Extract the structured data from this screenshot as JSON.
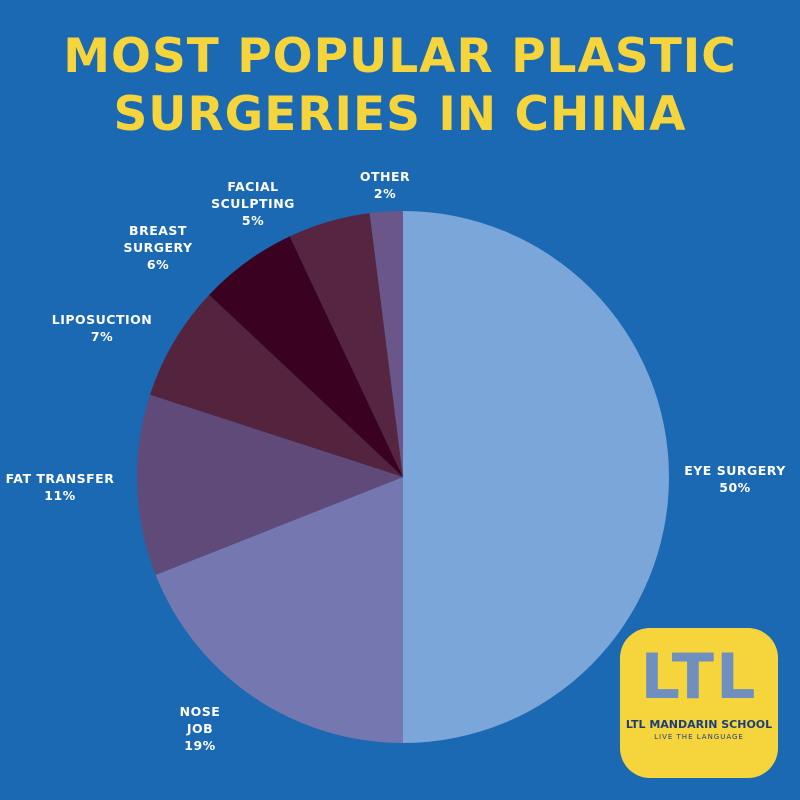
{
  "chart_data": {
    "type": "pie",
    "title": "MOST POPULAR PLASTIC SURGERIES IN CHINA",
    "categories": [
      "EYE SURGERY",
      "NOSE JOB",
      "FAT TRANSFER",
      "LIPOSUCTION",
      "BREAST SURGERY",
      "FACIAL SCULPTING",
      "OTHER"
    ],
    "values": [
      50,
      19,
      11,
      7,
      6,
      5,
      2
    ],
    "value_labels": [
      "50%",
      "19%",
      "11%",
      "7%",
      "6%",
      "5%",
      "2%"
    ],
    "colors": [
      "#7ba6d9",
      "#7577b0",
      "#604a7a",
      "#54243f",
      "#3a0220",
      "#552541",
      "#6a5688"
    ]
  },
  "logo": {
    "mark": "LTL",
    "name": "LTL MANDARIN SCHOOL",
    "tagline": "LIVE THE LANGUAGE"
  }
}
